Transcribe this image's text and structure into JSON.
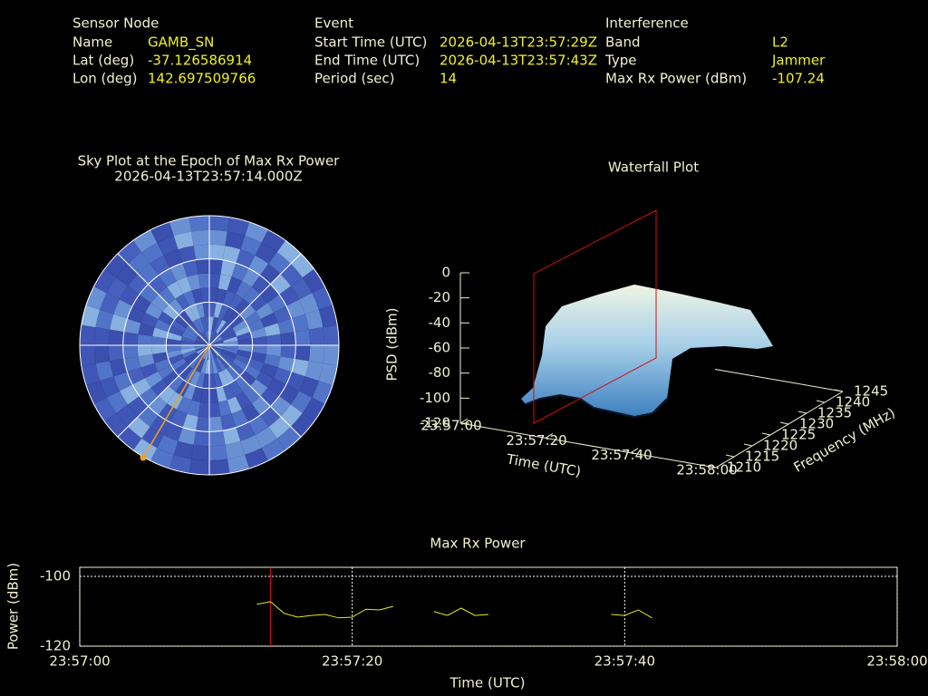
{
  "header": {
    "sensor_node": {
      "heading": "Sensor Node",
      "rows": [
        [
          "Name",
          "GAMB_SN"
        ],
        [
          "Lat (deg)",
          "-37.126586914"
        ],
        [
          "Lon (deg)",
          "142.697509766"
        ]
      ]
    },
    "event": {
      "heading": "Event",
      "rows": [
        [
          "Start Time (UTC)",
          "2026-04-13T23:57:29Z"
        ],
        [
          "End Time (UTC)",
          "2026-04-13T23:57:43Z"
        ],
        [
          "Period (sec)",
          "14"
        ]
      ]
    },
    "interference": {
      "heading": "Interference",
      "rows": [
        [
          "Band",
          "L2"
        ],
        [
          "Type",
          "Jammer"
        ],
        [
          "Max Rx Power (dBm)",
          "-107.24"
        ]
      ]
    }
  },
  "chart_data": [
    {
      "type": "polar",
      "title": "Sky Plot at the Epoch of Max Rx Power",
      "subtitle": "2026-04-13T23:57:14.000Z"
    },
    {
      "type": "surface3d",
      "title": "Waterfall Plot",
      "zlabel": "PSD (dBm)",
      "xlabel": "Time (UTC)",
      "ylabel": "Frequency (MHz)",
      "zlim": [
        -120,
        0
      ],
      "zticks": [
        0,
        -20,
        -40,
        -60,
        -80,
        -100,
        -120
      ],
      "xlim": [
        0,
        60
      ],
      "xticks": [
        {
          "value": 0,
          "label": "23:57:00"
        },
        {
          "value": 20,
          "label": "23:57:20"
        },
        {
          "value": 40,
          "label": "23:57:40"
        },
        {
          "value": 60,
          "label": "23:58:00"
        }
      ],
      "ylim": [
        1210,
        1245
      ],
      "yticks": [
        1210,
        1215,
        1220,
        1225,
        1230,
        1235,
        1240,
        1245
      ]
    },
    {
      "type": "line",
      "title": "Max Rx Power",
      "xlabel": "Time (UTC)",
      "ylabel": "Power (dBm)",
      "x": [
        13,
        14,
        15,
        16,
        17,
        18,
        19,
        20,
        21,
        22,
        23,
        24,
        25,
        26,
        27,
        28,
        29,
        30,
        31,
        32,
        33,
        34,
        35,
        36,
        37,
        38,
        39,
        40,
        41,
        42
      ],
      "series": [
        {
          "color": "#e8e820",
          "values": [
            -108.0,
            -107.24,
            -110.6,
            -111.7,
            -111.2,
            -110.9,
            -111.9,
            -111.7,
            -109.4,
            -109.6,
            -108.6,
            null,
            null,
            -110.1,
            -111.2,
            -109.1,
            -111.2,
            -110.9,
            null,
            null,
            null,
            null,
            null,
            null,
            null,
            null,
            -110.9,
            -111.2,
            -109.6,
            -111.9
          ]
        }
      ],
      "xlim": [
        0,
        60
      ],
      "xticks": [
        {
          "value": 0,
          "label": "23:57:00"
        },
        {
          "value": 20,
          "label": "23:57:20"
        },
        {
          "value": 40,
          "label": "23:57:40"
        },
        {
          "value": 60,
          "label": "23:58:00"
        }
      ],
      "ylim": [
        -120,
        -97.4
      ],
      "yticks": [
        -100,
        -120
      ],
      "grid": true,
      "highlight_x": 14,
      "highlight_color": "#d01010"
    }
  ]
}
